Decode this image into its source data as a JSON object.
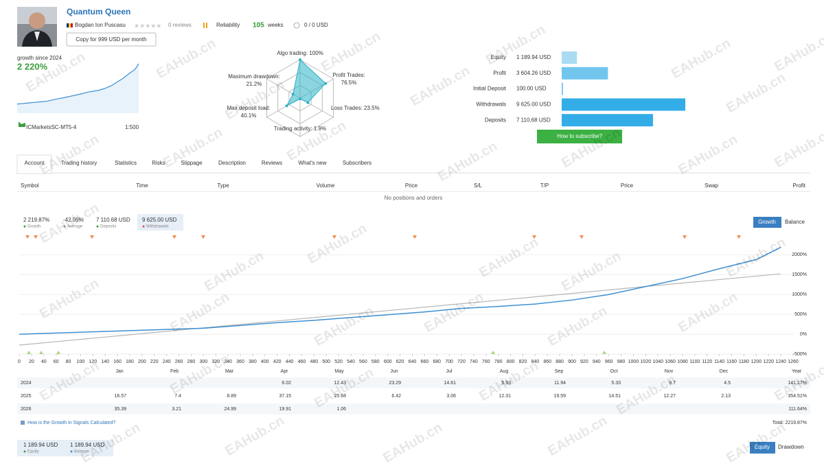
{
  "watermark": "EAHub.cn",
  "header": {
    "title": "Quantum Queen",
    "author": "Bogdan Ion Puscasu",
    "reviews": "0 reviews",
    "reliability": "Reliability",
    "weeks_value": "105",
    "weeks_label": "weeks",
    "funds": "0 / 0 USD",
    "copy_button": "Copy for 999 USD per month"
  },
  "growth_summary": {
    "label": "growth since 2024",
    "value": "2 220%",
    "broker": "ICMarketsSC-MT5-4",
    "leverage": "1:500"
  },
  "radar": {
    "type": "radar",
    "labels": [
      "Algo trading:",
      "Profit Trades:",
      "Loss Trades:",
      "Trading activity:",
      "Max deposit load:",
      "Maximum drawdown:"
    ],
    "values": [
      100,
      76.5,
      23.5,
      1.9,
      40.1,
      21.2
    ],
    "value_labels": [
      "100%",
      "76.5%",
      "23.5%",
      "1.9%",
      "40.1%",
      "21.2%"
    ],
    "rlim": [
      0,
      100
    ],
    "color": "#2bb3c8"
  },
  "account_bars": {
    "type": "hbar",
    "categories": [
      "Equity",
      "Profit",
      "Initial Deposit",
      "Withdrawals",
      "Deposits"
    ],
    "values": [
      1189.94,
      3604.26,
      100.0,
      9625.0,
      7110.68
    ],
    "value_labels": [
      "1 189.94 USD",
      "3 604.26 USD",
      "100.00 USD",
      "9 625.00 USD",
      "7 110.68 USD"
    ],
    "colors": [
      "#a9dcf3",
      "#72c6ee",
      "#72c6ee",
      "#33ade8",
      "#33ade8"
    ],
    "xlim": [
      0,
      9625
    ],
    "button": "How to subscribe?"
  },
  "tabs": [
    "Account",
    "Trading history",
    "Statistics",
    "Risks",
    "Slippage",
    "Description",
    "Reviews",
    "What's new",
    "Subscribers"
  ],
  "positions": {
    "columns": [
      "Symbol",
      "Time",
      "Type",
      "Volume",
      "Price",
      "S/L",
      "T/P",
      "Price",
      "Swap",
      "Profit"
    ],
    "empty": "No positions and orders"
  },
  "growth_stats": [
    {
      "value": "2 219.87%",
      "label": "Growth"
    },
    {
      "value": "-42.09%",
      "label": "Average"
    },
    {
      "value": "7 110.68 USD",
      "label": "Deposits"
    },
    {
      "value": "9 625.00 USD",
      "label": "Withdrawals"
    }
  ],
  "chart_toggle": [
    "Growth",
    "Balance"
  ],
  "chart_data": {
    "type": "line",
    "x": [
      0,
      60,
      120,
      180,
      240,
      300,
      360,
      420,
      480,
      540,
      600,
      660,
      720,
      780,
      840,
      900,
      960,
      1020,
      1080,
      1140,
      1200,
      1240
    ],
    "series": [
      {
        "color": "#3d8fd1",
        "values": [
          0,
          30,
          60,
          90,
          120,
          150,
          220,
          290,
          350,
          420,
          490,
          560,
          650,
          700,
          760,
          860,
          1000,
          1200,
          1400,
          1650,
          1880,
          2190
        ]
      },
      {
        "color": "#b5b5b5",
        "values": [
          -275,
          -188,
          -101,
          -14,
          73,
          160,
          246,
          333,
          420,
          507,
          594,
          681,
          768,
          854,
          941,
          1028,
          1115,
          1202,
          1289,
          1376,
          1463,
          1521
        ]
      }
    ],
    "xlim": [
      0,
      1260
    ],
    "ylim": [
      -500,
      2300
    ],
    "xticks": [
      0,
      20,
      40,
      60,
      80,
      100,
      120,
      140,
      160,
      180,
      200,
      220,
      240,
      260,
      280,
      300,
      320,
      340,
      360,
      380,
      400,
      420,
      440,
      460,
      480,
      500,
      520,
      540,
      560,
      580,
      600,
      620,
      640,
      660,
      680,
      700,
      720,
      740,
      760,
      780,
      800,
      820,
      840,
      860,
      880,
      900,
      920,
      940,
      960,
      980,
      1000,
      1020,
      1040,
      1060,
      1080,
      1100,
      1120,
      1140,
      1160,
      1180,
      1200,
      1220,
      1240,
      1260
    ],
    "yticks": [
      {
        "value": -500,
        "label": "-500%"
      },
      {
        "value": 0,
        "label": "0%"
      },
      {
        "value": 500,
        "label": "500%"
      },
      {
        "value": 1000,
        "label": "1000%"
      },
      {
        "value": 1500,
        "label": "1500%"
      },
      {
        "value": 2000,
        "label": "2000%"
      }
    ],
    "grid": true
  },
  "monthly": {
    "columns": [
      "Jan",
      "Feb",
      "Mar",
      "Apr",
      "May",
      "Jun",
      "Jul",
      "Aug",
      "Sep",
      "Oct",
      "Nov",
      "Dec",
      "Year"
    ],
    "rows": [
      {
        "year": "2024",
        "cells": [
          null,
          null,
          null,
          "6.02",
          "12.43",
          "23.29",
          "14.61",
          "5.93",
          "11.94",
          "5.33",
          "9.7",
          "4.5",
          "141.17%"
        ]
      },
      {
        "year": "2025",
        "cells": [
          "16.57",
          "7.4",
          "8.89",
          "37.15",
          "25.68",
          "6.42",
          "3.06",
          "12.31",
          "19.59",
          "14.51",
          "12.27",
          "2.13",
          "354.51%"
        ]
      },
      {
        "year": "2026",
        "cells": [
          "35.39",
          "3.21",
          "24.99",
          "19.91",
          "1.06",
          null,
          null,
          null,
          null,
          null,
          null,
          null,
          "111.64%"
        ]
      }
    ],
    "link": "How is the Growth in Signals Calculated?",
    "total": "Total: 2219.87%"
  },
  "equity_footer": {
    "stats": [
      {
        "value": "1 189.94 USD",
        "label": "Equity"
      },
      {
        "value": "1 189.94 USD",
        "label": "Balance"
      }
    ],
    "toggle": [
      "Equity",
      "Drawdown"
    ]
  }
}
